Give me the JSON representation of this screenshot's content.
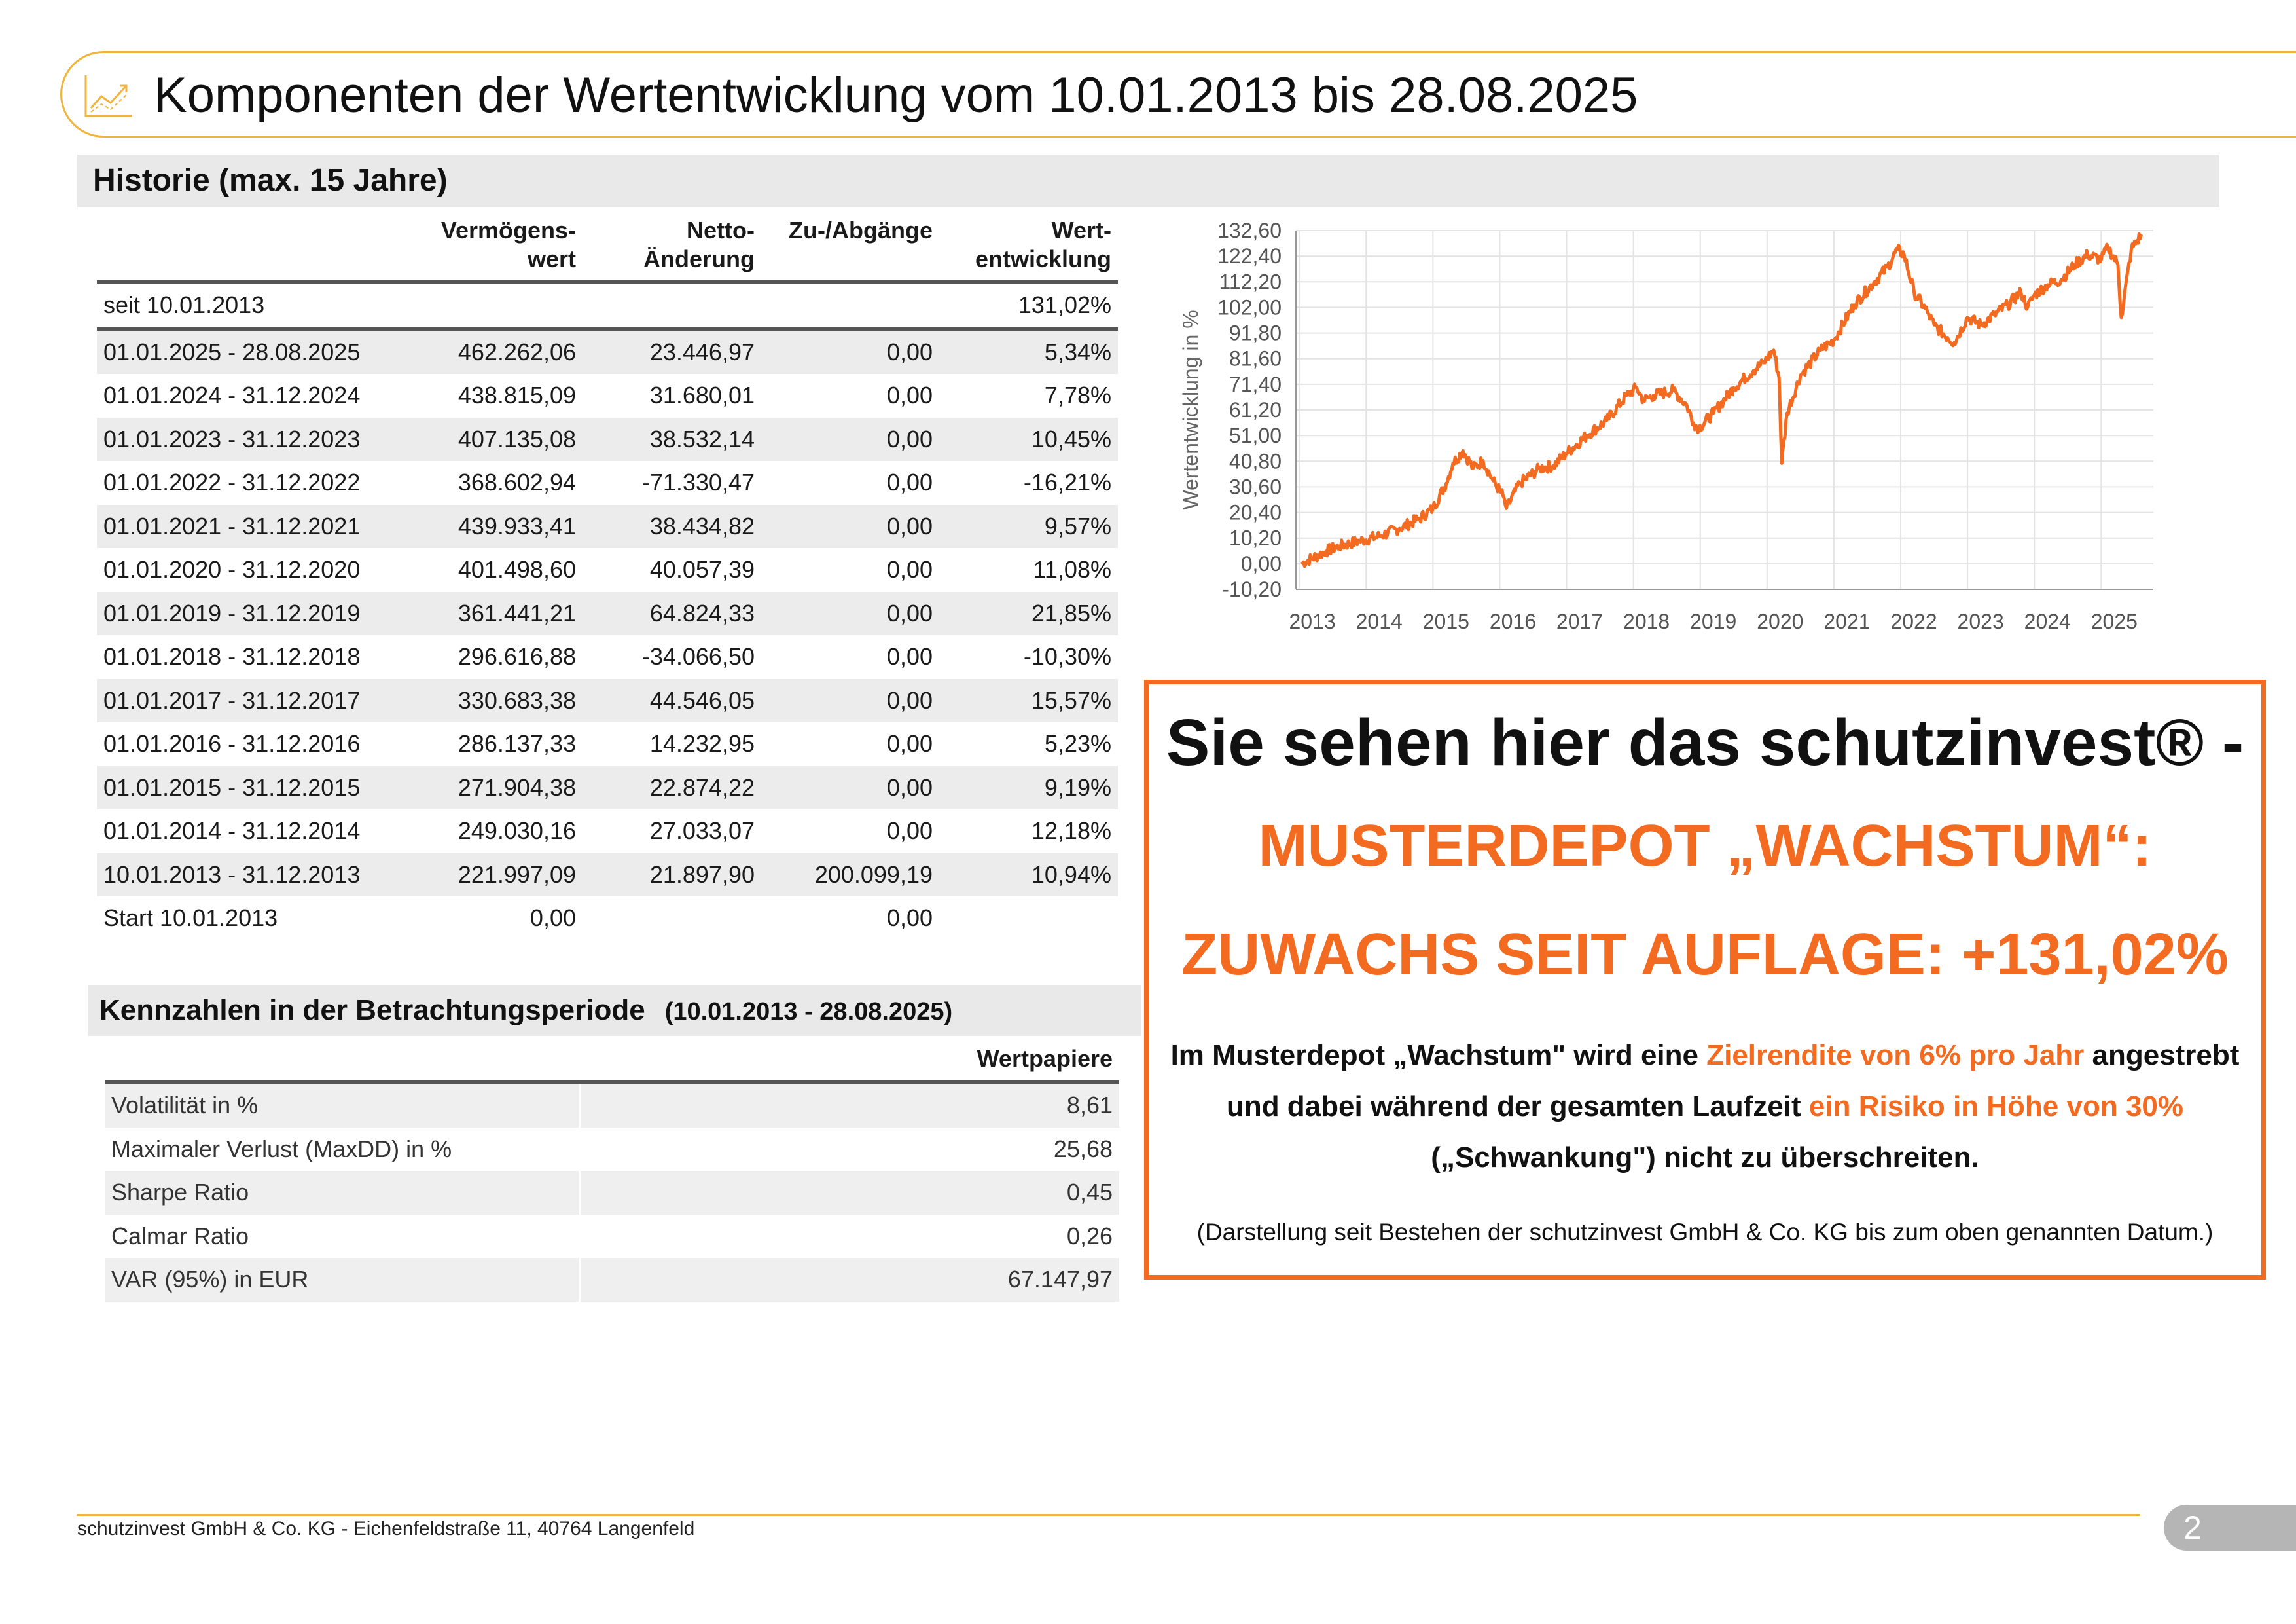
{
  "title": "Komponenten der Wertentwicklung vom 10.01.2013 bis 28.08.2025",
  "history": {
    "heading": "Historie (max. 15 Jahre)",
    "columns": [
      "",
      "Vermögens-\nwert",
      "Netto-\nÄnderung",
      "Zu-/Abgänge",
      "Wert-\nentwicklung"
    ],
    "rows": [
      {
        "period": "seit 10.01.2013",
        "wert": "",
        "netto": "",
        "zu": "",
        "perf": "131,02%"
      },
      {
        "period": "01.01.2025 - 28.08.2025",
        "wert": "462.262,06",
        "netto": "23.446,97",
        "zu": "0,00",
        "perf": "5,34%"
      },
      {
        "period": "01.01.2024 - 31.12.2024",
        "wert": "438.815,09",
        "netto": "31.680,01",
        "zu": "0,00",
        "perf": "7,78%"
      },
      {
        "period": "01.01.2023 - 31.12.2023",
        "wert": "407.135,08",
        "netto": "38.532,14",
        "zu": "0,00",
        "perf": "10,45%"
      },
      {
        "period": "01.01.2022 - 31.12.2022",
        "wert": "368.602,94",
        "netto": "-71.330,47",
        "zu": "0,00",
        "perf": "-16,21%"
      },
      {
        "period": "01.01.2021 - 31.12.2021",
        "wert": "439.933,41",
        "netto": "38.434,82",
        "zu": "0,00",
        "perf": "9,57%"
      },
      {
        "period": "01.01.2020 - 31.12.2020",
        "wert": "401.498,60",
        "netto": "40.057,39",
        "zu": "0,00",
        "perf": "11,08%"
      },
      {
        "period": "01.01.2019 - 31.12.2019",
        "wert": "361.441,21",
        "netto": "64.824,33",
        "zu": "0,00",
        "perf": "21,85%"
      },
      {
        "period": "01.01.2018 - 31.12.2018",
        "wert": "296.616,88",
        "netto": "-34.066,50",
        "zu": "0,00",
        "perf": "-10,30%"
      },
      {
        "period": "01.01.2017 - 31.12.2017",
        "wert": "330.683,38",
        "netto": "44.546,05",
        "zu": "0,00",
        "perf": "15,57%"
      },
      {
        "period": "01.01.2016 - 31.12.2016",
        "wert": "286.137,33",
        "netto": "14.232,95",
        "zu": "0,00",
        "perf": "5,23%"
      },
      {
        "period": "01.01.2015 - 31.12.2015",
        "wert": "271.904,38",
        "netto": "22.874,22",
        "zu": "0,00",
        "perf": "9,19%"
      },
      {
        "period": "01.01.2014 - 31.12.2014",
        "wert": "249.030,16",
        "netto": "27.033,07",
        "zu": "0,00",
        "perf": "12,18%"
      },
      {
        "period": "10.01.2013 - 31.12.2013",
        "wert": "221.997,09",
        "netto": "21.897,90",
        "zu": "200.099,19",
        "perf": "10,94%"
      },
      {
        "period": "Start 10.01.2013",
        "wert": "0,00",
        "netto": "",
        "zu": "0,00",
        "perf": ""
      }
    ]
  },
  "kennzahlen": {
    "heading": "Kennzahlen in der Betrachtungsperiode",
    "period": "(10.01.2013 - 28.08.2025)",
    "column": "Wertpapiere",
    "rows": [
      {
        "label": "Volatilität in %",
        "value": "8,61"
      },
      {
        "label": "Maximaler Verlust (MaxDD) in %",
        "value": "25,68"
      },
      {
        "label": "Sharpe Ratio",
        "value": "0,45"
      },
      {
        "label": "Calmar Ratio",
        "value": "0,26"
      },
      {
        "label": "VAR (95%) in EUR",
        "value": "67.147,97"
      }
    ]
  },
  "chart_data": {
    "type": "line",
    "title": "",
    "ylabel": "Wertentwicklung in %",
    "xlabel": "",
    "color": "#f26b21",
    "ylim": [
      -10.2,
      132.6
    ],
    "yticks": [
      "132,60",
      "122,40",
      "112,20",
      "102,00",
      "91,80",
      "81,60",
      "71,40",
      "61,20",
      "51,00",
      "40,80",
      "30,60",
      "20,40",
      "10,20",
      "0,00",
      "-10,20"
    ],
    "xticks": [
      "2013",
      "2014",
      "2015",
      "2016",
      "2017",
      "2018",
      "2019",
      "2020",
      "2021",
      "2022",
      "2023",
      "2024",
      "2025"
    ],
    "grid": true,
    "series": [
      {
        "x": [
          2013.03,
          2013.4,
          2013.6,
          2013.9,
          2014.2,
          2014.5,
          2014.8,
          2015.0,
          2015.2,
          2015.3,
          2015.45,
          2015.6,
          2015.75,
          2015.9,
          2016.05,
          2016.1,
          2016.3,
          2016.6,
          2016.8,
          2017.0,
          2017.3,
          2017.6,
          2017.9,
          2018.05,
          2018.15,
          2018.3,
          2018.6,
          2018.8,
          2018.9,
          2018.98,
          2019.2,
          2019.5,
          2019.8,
          2019.95,
          2020.1,
          2020.18,
          2020.22,
          2020.3,
          2020.5,
          2020.8,
          2021.0,
          2021.3,
          2021.6,
          2021.8,
          2021.95,
          2022.05,
          2022.2,
          2022.4,
          2022.5,
          2022.7,
          2022.8,
          2023.0,
          2023.2,
          2023.4,
          2023.6,
          2023.8,
          2023.9,
          2024.0,
          2024.2,
          2024.4,
          2024.6,
          2024.8,
          2025.0,
          2025.1,
          2025.25,
          2025.3,
          2025.45,
          2025.6
        ],
        "y": [
          0,
          5,
          7,
          9,
          11,
          14,
          18,
          22,
          32,
          40,
          45,
          38,
          41,
          33,
          27,
          22,
          32,
          38,
          39,
          44,
          51,
          57,
          67,
          70,
          65,
          67,
          69,
          63,
          56,
          54,
          60,
          70,
          77,
          80,
          85,
          74,
          40,
          60,
          75,
          85,
          89,
          103,
          112,
          118,
          125,
          123,
          108,
          100,
          95,
          90,
          88,
          98,
          95,
          99,
          103,
          108,
          102,
          107,
          111,
          113,
          119,
          123,
          121,
          126,
          119,
          98,
          125,
          131
        ]
      }
    ]
  },
  "promo": {
    "line1": "Sie sehen hier das schutzinvest® -",
    "line2": "MUSTERDEPOT „WACHSTUM“:",
    "line3": "ZUWACHS SEIT AUFLAGE: +131,02%",
    "p1_a": "Im Musterdepot „Wachstum\" wird eine ",
    "p1_hl": "Zielrendite von 6% pro Jahr",
    "p1_b": " angestrebt",
    "p2_a": "und dabei während der gesamten Laufzeit ",
    "p2_hl": "ein Risiko in Höhe von 30%",
    "p3": "(„Schwankung\") nicht zu überschreiten.",
    "note": "(Darstellung seit Bestehen der schutzinvest GmbH & Co. KG bis zum oben genannten Datum.)"
  },
  "footer": {
    "text": "schutzinvest GmbH & Co. KG - Eichenfeldstraße 11, 40764 Langenfeld",
    "page": "2"
  },
  "colors": {
    "accent": "#f0b43c",
    "orange": "#f26b21",
    "grey": "#e9e9e9"
  }
}
